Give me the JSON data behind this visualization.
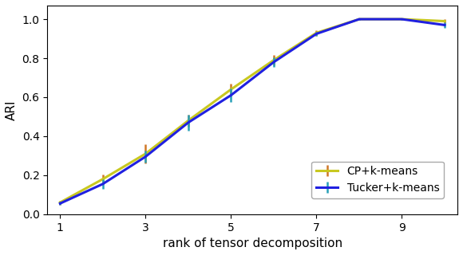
{
  "x": [
    1,
    2,
    3,
    4,
    5,
    6,
    7,
    8,
    9,
    10
  ],
  "cp_mean": [
    0.06,
    0.18,
    0.31,
    0.48,
    0.64,
    0.79,
    0.93,
    1.0,
    1.0,
    0.99
  ],
  "cp_err": [
    0.01,
    0.025,
    0.05,
    0.03,
    0.03,
    0.025,
    0.015,
    0.003,
    0.003,
    0.012
  ],
  "tucker_mean": [
    0.055,
    0.155,
    0.295,
    0.47,
    0.61,
    0.78,
    0.925,
    1.0,
    1.0,
    0.97
  ],
  "tucker_err": [
    0.008,
    0.025,
    0.03,
    0.04,
    0.035,
    0.025,
    0.01,
    0.003,
    0.003,
    0.015
  ],
  "cp_color": "#c8c820",
  "tucker_color": "#2020e0",
  "cp_err_color": "#d07828",
  "tucker_err_color": "#28a0b8",
  "xlabel": "rank of tensor decomposition",
  "ylabel": "ARI",
  "cp_label": "CP+k-means",
  "tucker_label": "Tucker+k-means",
  "ylim": [
    0.0,
    1.07
  ],
  "xlim": [
    0.7,
    10.3
  ],
  "xticks": [
    1,
    3,
    5,
    7,
    9
  ],
  "yticks": [
    0.0,
    0.2,
    0.4,
    0.6,
    0.8,
    1.0
  ],
  "legend_loc": "lower right",
  "linewidth": 2.2,
  "elinewidth": 1.8,
  "capsize": 0,
  "figsize": [
    5.8,
    3.2
  ],
  "dpi": 100
}
